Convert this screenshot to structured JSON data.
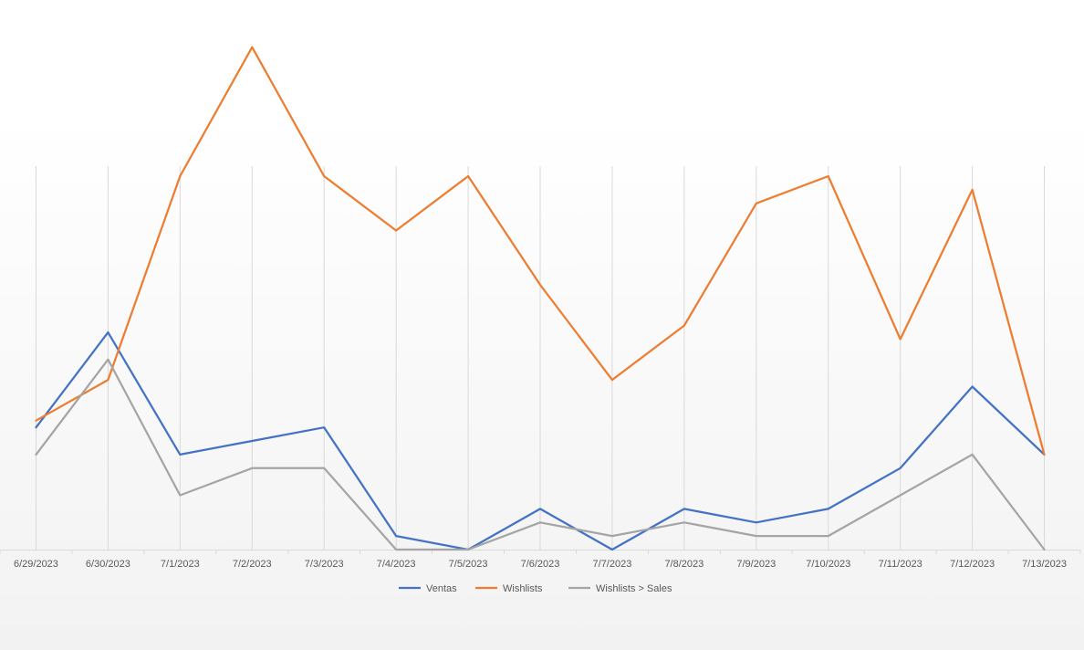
{
  "chart_data": {
    "type": "line",
    "title": "",
    "xlabel": "",
    "ylabel": "",
    "categories": [
      "6/29/2023",
      "6/30/2023",
      "7/1/2023",
      "7/2/2023",
      "7/3/2023",
      "7/4/2023",
      "7/5/2023",
      "7/6/2023",
      "7/7/2023",
      "7/8/2023",
      "7/9/2023",
      "7/10/2023",
      "7/11/2023",
      "7/12/2023",
      "7/13/2023"
    ],
    "series": [
      {
        "name": "Ventas",
        "color": "#4472C4",
        "values": [
          9,
          16,
          7,
          8,
          9,
          1,
          0,
          3,
          0,
          3,
          2,
          3,
          6,
          12,
          7
        ]
      },
      {
        "name": "Wishlists",
        "color": "#ED7D31",
        "values": [
          9.5,
          12.5,
          27.5,
          37,
          27.5,
          23.5,
          27.5,
          19.5,
          12.5,
          16.5,
          25.5,
          27.5,
          15.5,
          26.5,
          7
        ]
      },
      {
        "name": "Wishlists > Sales",
        "color": "#A5A5A5",
        "values": [
          7,
          14,
          4,
          6,
          6,
          0,
          0,
          2,
          1,
          2,
          1,
          1,
          4,
          7,
          0
        ]
      }
    ],
    "ylim": [
      0,
      39
    ],
    "grid": "vertical",
    "legend_position": "bottom"
  }
}
